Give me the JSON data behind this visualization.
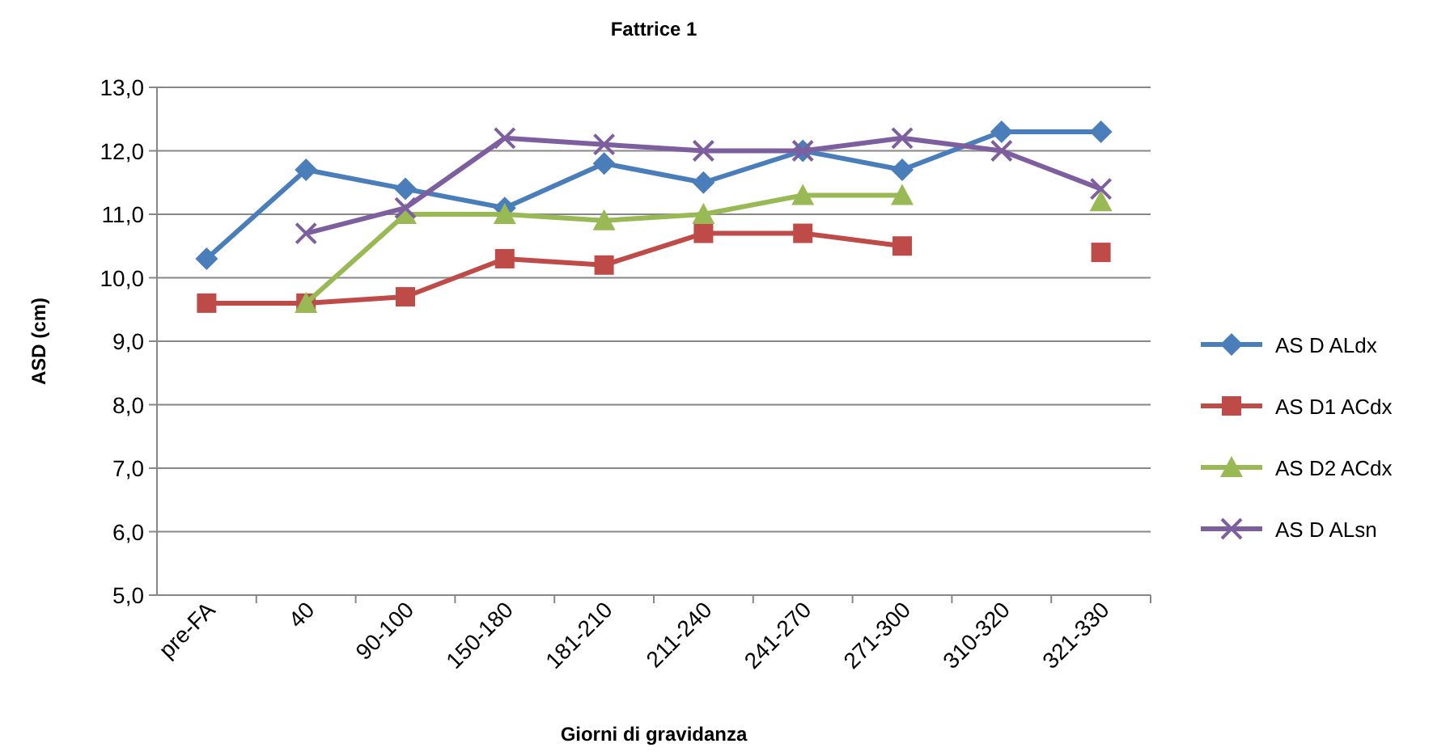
{
  "chart_data": {
    "type": "line",
    "title": "Fattrice 1",
    "xlabel": "Giorni di gravidanza",
    "ylabel": "ASD (cm)",
    "categories": [
      "pre-FA",
      "40",
      "90-100",
      "150-180",
      "181-210",
      "211-240",
      "241-270",
      "271-300",
      "310-320",
      "321-330"
    ],
    "series": [
      {
        "name": "AS D ALdx",
        "color": "#4a7ebb",
        "marker": "diamond",
        "values": [
          10.3,
          11.7,
          11.4,
          11.1,
          11.8,
          11.5,
          12.0,
          11.7,
          12.3,
          12.3
        ]
      },
      {
        "name": "AS D1 ACdx",
        "color": "#be4b48",
        "marker": "square",
        "values": [
          9.6,
          9.6,
          9.7,
          10.3,
          10.2,
          10.7,
          10.7,
          10.5,
          null,
          10.4
        ]
      },
      {
        "name": "AS D2 ACdx",
        "color": "#98b954",
        "marker": "triangle",
        "values": [
          null,
          9.6,
          11.0,
          11.0,
          10.9,
          11.0,
          11.3,
          11.3,
          null,
          11.2
        ]
      },
      {
        "name": "AS D ALsn",
        "color": "#7d5fa0",
        "marker": "cross",
        "values": [
          null,
          10.7,
          11.1,
          12.2,
          12.1,
          12.0,
          12.0,
          12.2,
          12.0,
          11.4
        ]
      }
    ],
    "ylim": [
      5,
      13
    ],
    "yticks": [
      {
        "value": 5,
        "label": "5,0"
      },
      {
        "value": 6,
        "label": "6,0"
      },
      {
        "value": 7,
        "label": "7,0"
      },
      {
        "value": 8,
        "label": "8,0"
      },
      {
        "value": 9,
        "label": "9,0"
      },
      {
        "value": 10,
        "label": "10,0"
      },
      {
        "value": 11,
        "label": "11,0"
      },
      {
        "value": 12,
        "label": "12,0"
      },
      {
        "value": 13,
        "label": "13,0"
      }
    ],
    "grid": "y",
    "legend": "right"
  }
}
